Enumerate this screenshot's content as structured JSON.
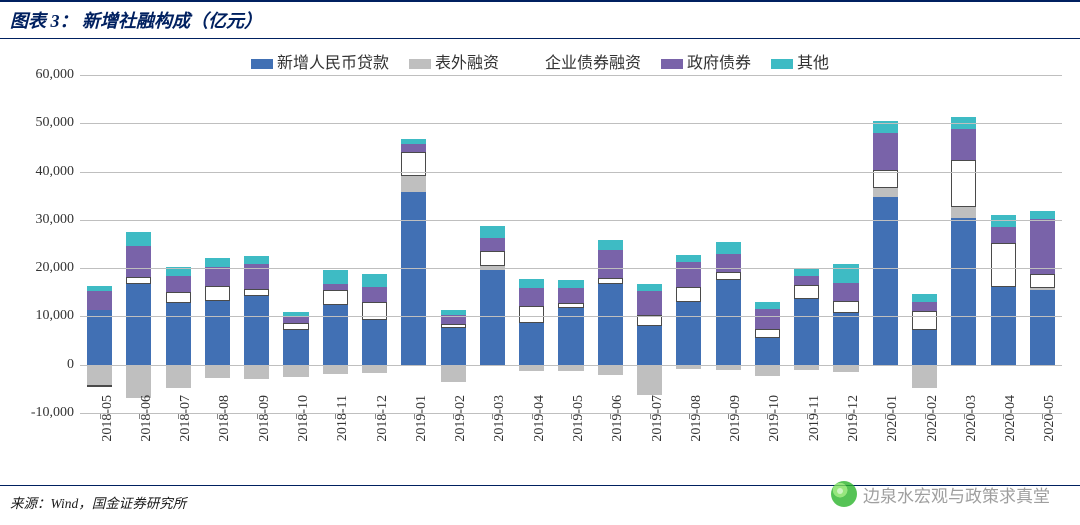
{
  "title": "图表 3：  新增社融构成（亿元）",
  "source": "来源：Wind，国金证券研究所",
  "watermark": "边泉水宏观与政策求真堂",
  "chart": {
    "type": "stacked-bar",
    "background_color": "#ffffff",
    "grid_color": "#bfbfbf",
    "text_color": "#333333",
    "accent_color": "#002060",
    "label_fontsize": 14,
    "title_fontsize": 18,
    "ylim": [
      -10000,
      60000
    ],
    "ytick_step": 10000,
    "yticks": [
      -10000,
      0,
      10000,
      20000,
      30000,
      40000,
      50000,
      60000
    ],
    "ytick_labels": [
      "-10,000",
      "0",
      "10,000",
      "20,000",
      "30,000",
      "40,000",
      "50,000",
      "60,000"
    ],
    "categories": [
      "2018-05",
      "2018-06",
      "2018-07",
      "2018-08",
      "2018-09",
      "2018-10",
      "2018-11",
      "2018-12",
      "2019-01",
      "2019-02",
      "2019-03",
      "2019-04",
      "2019-05",
      "2019-06",
      "2019-07",
      "2019-08",
      "2019-09",
      "2019-10",
      "2019-11",
      "2019-12",
      "2020-01",
      "2020-02",
      "2020-03",
      "2020-04",
      "2020-05"
    ],
    "series": [
      {
        "name": "新增人民币贷款",
        "color": "#4170b4"
      },
      {
        "name": "表外融资",
        "color": "#bfbfbf"
      },
      {
        "name": "企业债券融资",
        "color": "#ffffff"
      },
      {
        "name": "政府债券",
        "color": "#7963a9"
      },
      {
        "name": "其他",
        "color": "#3ebbc4"
      }
    ],
    "data": {
      "loans": [
        11400,
        16700,
        12800,
        13100,
        14300,
        7200,
        12300,
        9300,
        35700,
        7600,
        19600,
        8700,
        11800,
        16700,
        8000,
        13000,
        17600,
        5500,
        13600,
        10800,
        34700,
        7200,
        30400,
        16200,
        15500
      ],
      "offbs": [
        -4200,
        -6900,
        -4900,
        -2700,
        -2900,
        -2600,
        -1900,
        -1700,
        3400,
        -3600,
        800,
        -1400,
        -1400,
        -2200,
        -6200,
        -800,
        -1100,
        -2300,
        -1100,
        -1500,
        1800,
        -4900,
        2200,
        -100,
        400
      ],
      "bonds": [
        -400,
        1400,
        2200,
        3300,
        1400,
        1500,
        3100,
        3600,
        4900,
        800,
        3200,
        3500,
        1000,
        1300,
        2300,
        3100,
        1600,
        1800,
        3000,
        2500,
        3900,
        3900,
        9900,
        9000,
        2900
      ],
      "gov": [
        3800,
        6500,
        3400,
        3900,
        5100,
        1300,
        1300,
        3300,
        1800,
        1800,
        2600,
        3600,
        3000,
        5800,
        4900,
        5200,
        3700,
        4200,
        1700,
        3700,
        7600,
        1800,
        6400,
        3300,
        11400
      ],
      "other": [
        1200,
        2900,
        1900,
        1800,
        1800,
        1000,
        2900,
        2600,
        1000,
        1200,
        2500,
        1900,
        1800,
        2000,
        1500,
        1500,
        2600,
        1400,
        1600,
        3800,
        2500,
        1700,
        2400,
        2500,
        1700
      ]
    },
    "bar_border_color": "#4a4a4a",
    "bar_width": 0.64
  }
}
